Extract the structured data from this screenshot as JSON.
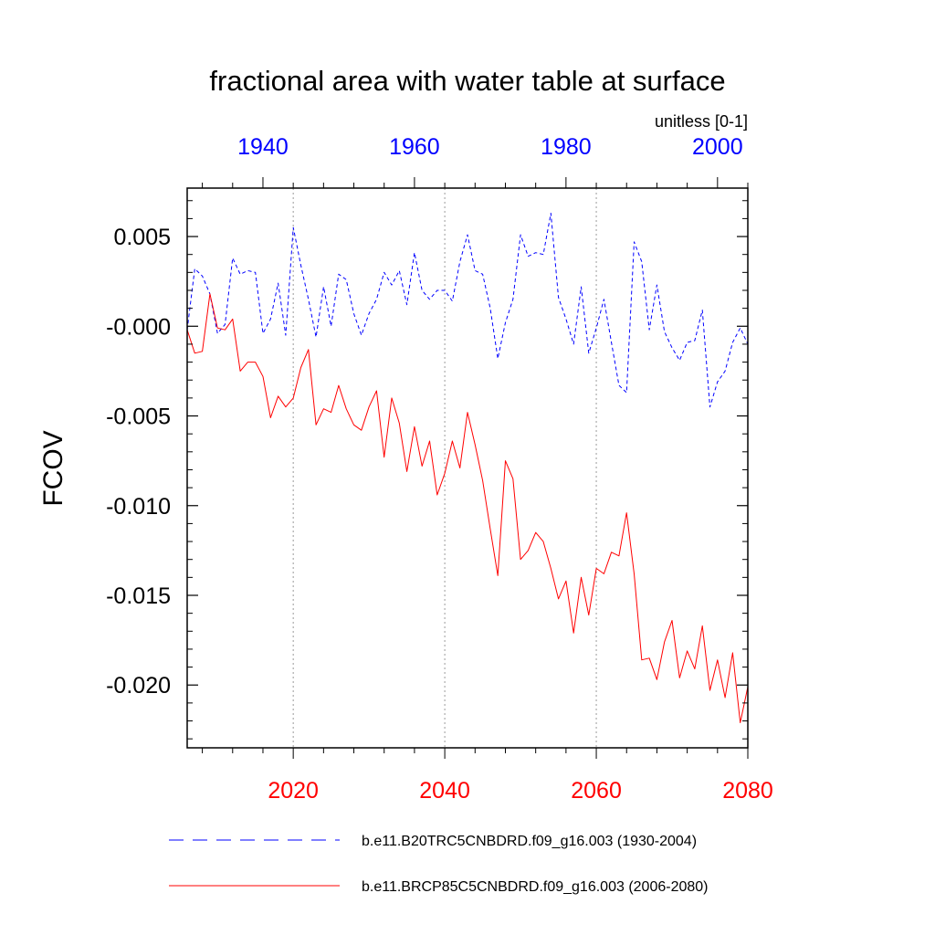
{
  "chart_data": {
    "type": "line",
    "title": "fractional area with water table at surface",
    "units": "unitless [0-1]",
    "ylabel": "FCOV",
    "ylim": [
      -0.0235,
      0.0077
    ],
    "yticks": [
      0.005,
      0.0,
      -0.005,
      -0.01,
      -0.015,
      -0.02
    ],
    "ytick_labels": [
      "0.005",
      "-0.000",
      "-0.005",
      "-0.010",
      "-0.015",
      "-0.020"
    ],
    "top_axis": {
      "range": [
        1930,
        2004
      ],
      "ticks": [
        1940,
        1960,
        1980,
        2000
      ],
      "tick_labels": [
        "1940",
        "1960",
        "1980",
        "2000"
      ],
      "color": "#0000ff"
    },
    "bottom_axis": {
      "range": [
        2006,
        2080
      ],
      "ticks": [
        2020,
        2040,
        2060,
        2080
      ],
      "tick_labels": [
        "2020",
        "2040",
        "2060",
        "2080"
      ],
      "color": "#ff0000"
    },
    "gridlines_x": [
      2020,
      2040,
      2060
    ],
    "series": [
      {
        "name": "b.e11.B20TRC5CNBDRD.f09_g16.003 (1930-2004)",
        "axis": "top",
        "style": "dashed",
        "color": "#0000ff",
        "x": [
          1930,
          1931,
          1932,
          1933,
          1934,
          1935,
          1936,
          1937,
          1938,
          1939,
          1940,
          1941,
          1942,
          1943,
          1944,
          1945,
          1946,
          1947,
          1948,
          1949,
          1950,
          1951,
          1952,
          1953,
          1954,
          1955,
          1956,
          1957,
          1958,
          1959,
          1960,
          1961,
          1962,
          1963,
          1964,
          1965,
          1966,
          1967,
          1968,
          1969,
          1970,
          1971,
          1972,
          1973,
          1974,
          1975,
          1976,
          1977,
          1978,
          1979,
          1980,
          1981,
          1982,
          1983,
          1984,
          1985,
          1986,
          1987,
          1988,
          1989,
          1990,
          1991,
          1992,
          1993,
          1994,
          1995,
          1996,
          1997,
          1998,
          1999,
          2000,
          2001,
          2002,
          2003,
          2004
        ],
        "values": [
          -0.0002,
          0.0032,
          0.0028,
          0.0018,
          -0.0004,
          0.0001,
          0.0038,
          0.0029,
          0.0031,
          0.003,
          -0.0004,
          0.0004,
          0.0024,
          -0.0005,
          0.0055,
          0.0034,
          0.0015,
          -0.0006,
          0.0022,
          0.0,
          0.0029,
          0.0026,
          0.0007,
          -0.0005,
          0.0007,
          0.0015,
          0.003,
          0.0023,
          0.0031,
          0.0012,
          0.0041,
          0.002,
          0.0015,
          0.002,
          0.002,
          0.0014,
          0.0036,
          0.0051,
          0.0031,
          0.0029,
          0.001,
          -0.0018,
          0.0002,
          0.0015,
          0.0051,
          0.0039,
          0.0041,
          0.004,
          0.0063,
          0.0016,
          0.0004,
          -0.001,
          0.0022,
          -0.0015,
          -0.0001,
          0.0015,
          -0.0009,
          -0.0033,
          -0.0037,
          0.0047,
          0.0036,
          -0.0002,
          0.0023,
          -0.0003,
          -0.0012,
          -0.0019,
          -0.0009,
          -0.0008,
          0.0009,
          -0.0045,
          -0.0031,
          -0.0025,
          -0.0009,
          -0.0001,
          -0.001
        ]
      },
      {
        "name": "b.e11.BRCP85C5CNBDRD.f09_g16.003 (2006-2080)",
        "axis": "bottom",
        "style": "solid",
        "color": "#ff0000",
        "x": [
          2006,
          2007,
          2008,
          2009,
          2010,
          2011,
          2012,
          2013,
          2014,
          2015,
          2016,
          2017,
          2018,
          2019,
          2020,
          2021,
          2022,
          2023,
          2024,
          2025,
          2026,
          2027,
          2028,
          2029,
          2030,
          2031,
          2032,
          2033,
          2034,
          2035,
          2036,
          2037,
          2038,
          2039,
          2040,
          2041,
          2042,
          2043,
          2044,
          2045,
          2046,
          2047,
          2048,
          2049,
          2050,
          2051,
          2052,
          2053,
          2054,
          2055,
          2056,
          2057,
          2058,
          2059,
          2060,
          2061,
          2062,
          2063,
          2064,
          2065,
          2066,
          2067,
          2068,
          2069,
          2070,
          2071,
          2072,
          2073,
          2074,
          2075,
          2076,
          2077,
          2078,
          2079,
          2080
        ],
        "values": [
          -0.0002,
          -0.0015,
          -0.0014,
          0.0018,
          -0.0001,
          -0.0002,
          0.0004,
          -0.0025,
          -0.002,
          -0.002,
          -0.0028,
          -0.0051,
          -0.0039,
          -0.0045,
          -0.004,
          -0.0023,
          -0.0013,
          -0.0055,
          -0.0046,
          -0.0048,
          -0.0033,
          -0.0046,
          -0.0055,
          -0.0058,
          -0.0045,
          -0.0036,
          -0.0073,
          -0.004,
          -0.0054,
          -0.0081,
          -0.0056,
          -0.0078,
          -0.0064,
          -0.0094,
          -0.0082,
          -0.0064,
          -0.0079,
          -0.0048,
          -0.0066,
          -0.0086,
          -0.0113,
          -0.0139,
          -0.0075,
          -0.0085,
          -0.013,
          -0.0125,
          -0.0115,
          -0.012,
          -0.0135,
          -0.0152,
          -0.0142,
          -0.0171,
          -0.014,
          -0.0161,
          -0.0135,
          -0.0138,
          -0.0126,
          -0.0128,
          -0.0104,
          -0.0138,
          -0.0186,
          -0.0185,
          -0.0197,
          -0.0176,
          -0.0164,
          -0.0196,
          -0.0181,
          -0.0191,
          -0.0167,
          -0.0203,
          -0.0186,
          -0.0207,
          -0.0182,
          -0.0221,
          -0.0201
        ]
      }
    ]
  }
}
